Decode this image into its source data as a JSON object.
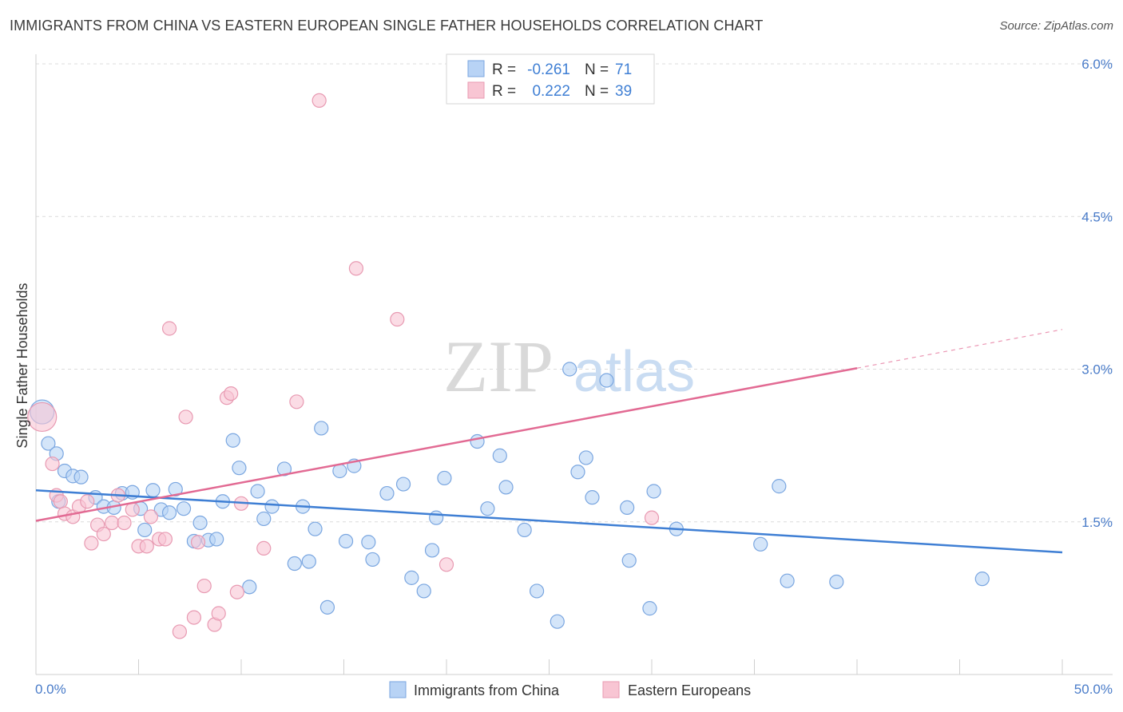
{
  "title": "IMMIGRANTS FROM CHINA VS EASTERN EUROPEAN SINGLE FATHER HOUSEHOLDS CORRELATION CHART",
  "source": "Source: ZipAtlas.com",
  "watermark": {
    "zip": "ZIP",
    "atlas": "atlas"
  },
  "legend": {
    "r_label": "R =",
    "n_label": "N =",
    "rows": [
      {
        "name": "Immigrants from China",
        "r": "-0.261",
        "n": "71",
        "fill": "#b8d3f5",
        "stroke": "#7aa6e0"
      },
      {
        "name": "Eastern Europeans",
        "r": "0.222",
        "n": "39",
        "fill": "#f8c5d3",
        "stroke": "#e89ab2"
      }
    ]
  },
  "chart_data": {
    "type": "scatter",
    "title": "IMMIGRANTS FROM CHINA VS EASTERN EUROPEAN SINGLE FATHER HOUSEHOLDS CORRELATION CHART",
    "xlabel": "",
    "ylabel": "Single Father Households",
    "xlim": [
      0,
      50
    ],
    "ylim": [
      0,
      6.2
    ],
    "x_tick_labels": {
      "min": "0.0%",
      "max": "50.0%"
    },
    "y_ticks": [
      {
        "value": 1.5,
        "label": "1.5%"
      },
      {
        "value": 3.0,
        "label": "3.0%"
      },
      {
        "value": 4.5,
        "label": "4.5%"
      },
      {
        "value": 6.0,
        "label": "6.0%"
      }
    ],
    "series": [
      {
        "name": "Immigrants from China",
        "color": "#3f7fd4",
        "fill": "#b8d3f5",
        "points": [
          [
            0.3,
            2.58
          ],
          [
            0.6,
            2.27
          ],
          [
            1.0,
            2.17
          ],
          [
            1.4,
            2.0
          ],
          [
            1.8,
            1.95
          ],
          [
            2.2,
            1.94
          ],
          [
            2.9,
            1.74
          ],
          [
            3.3,
            1.65
          ],
          [
            3.8,
            1.64
          ],
          [
            4.2,
            1.78
          ],
          [
            4.7,
            1.79
          ],
          [
            5.1,
            1.63
          ],
          [
            5.3,
            1.42
          ],
          [
            5.7,
            1.81
          ],
          [
            6.1,
            1.62
          ],
          [
            6.5,
            1.59
          ],
          [
            6.8,
            1.82
          ],
          [
            7.2,
            1.63
          ],
          [
            7.7,
            1.31
          ],
          [
            8.0,
            1.49
          ],
          [
            8.4,
            1.32
          ],
          [
            8.8,
            1.33
          ],
          [
            9.1,
            1.7
          ],
          [
            9.6,
            2.3
          ],
          [
            9.9,
            2.03
          ],
          [
            10.4,
            0.86
          ],
          [
            10.8,
            1.8
          ],
          [
            11.1,
            1.53
          ],
          [
            11.5,
            1.65
          ],
          [
            12.1,
            2.02
          ],
          [
            12.6,
            1.09
          ],
          [
            13.0,
            1.65
          ],
          [
            13.3,
            1.11
          ],
          [
            13.6,
            1.43
          ],
          [
            13.9,
            2.42
          ],
          [
            14.2,
            0.66
          ],
          [
            14.8,
            2.0
          ],
          [
            15.1,
            1.31
          ],
          [
            15.5,
            2.05
          ],
          [
            16.2,
            1.3
          ],
          [
            16.4,
            1.13
          ],
          [
            17.1,
            1.78
          ],
          [
            17.9,
            1.87
          ],
          [
            18.3,
            0.95
          ],
          [
            18.9,
            0.82
          ],
          [
            19.3,
            1.22
          ],
          [
            19.5,
            1.54
          ],
          [
            19.9,
            1.93
          ],
          [
            21.5,
            2.29
          ],
          [
            22.0,
            1.63
          ],
          [
            22.6,
            2.15
          ],
          [
            22.9,
            1.84
          ],
          [
            23.8,
            1.42
          ],
          [
            24.4,
            0.82
          ],
          [
            25.4,
            0.52
          ],
          [
            26.0,
            3.0
          ],
          [
            26.4,
            1.99
          ],
          [
            26.8,
            2.13
          ],
          [
            27.1,
            1.74
          ],
          [
            27.8,
            2.89
          ],
          [
            28.8,
            1.64
          ],
          [
            28.9,
            1.12
          ],
          [
            29.9,
            0.65
          ],
          [
            30.1,
            1.8
          ],
          [
            31.2,
            1.43
          ],
          [
            35.3,
            1.28
          ],
          [
            36.2,
            1.85
          ],
          [
            36.6,
            0.92
          ],
          [
            39.0,
            0.91
          ],
          [
            46.1,
            0.94
          ],
          [
            1.1,
            1.7
          ]
        ],
        "trend": {
          "x0": 0,
          "y0": 1.81,
          "x1": 50,
          "y1": 1.2
        }
      },
      {
        "name": "Eastern Europeans",
        "color": "#e26a93",
        "fill": "#f8c5d3",
        "points": [
          [
            0.3,
            2.53
          ],
          [
            0.8,
            2.07
          ],
          [
            1.0,
            1.76
          ],
          [
            1.2,
            1.7
          ],
          [
            1.4,
            1.58
          ],
          [
            1.8,
            1.55
          ],
          [
            2.1,
            1.65
          ],
          [
            2.5,
            1.7
          ],
          [
            2.7,
            1.29
          ],
          [
            3.0,
            1.47
          ],
          [
            3.3,
            1.38
          ],
          [
            3.7,
            1.49
          ],
          [
            4.0,
            1.76
          ],
          [
            4.3,
            1.49
          ],
          [
            4.7,
            1.62
          ],
          [
            5.0,
            1.26
          ],
          [
            5.4,
            1.26
          ],
          [
            5.6,
            1.55
          ],
          [
            6.0,
            1.33
          ],
          [
            6.3,
            1.33
          ],
          [
            6.5,
            3.4
          ],
          [
            7.0,
            0.42
          ],
          [
            7.3,
            2.53
          ],
          [
            7.7,
            0.56
          ],
          [
            7.9,
            1.3
          ],
          [
            8.2,
            0.87
          ],
          [
            8.7,
            0.49
          ],
          [
            8.9,
            0.6
          ],
          [
            9.3,
            2.72
          ],
          [
            9.5,
            2.76
          ],
          [
            9.8,
            0.81
          ],
          [
            10.0,
            1.68
          ],
          [
            11.1,
            1.24
          ],
          [
            12.7,
            2.68
          ],
          [
            13.8,
            5.64
          ],
          [
            15.6,
            3.99
          ],
          [
            17.6,
            3.49
          ],
          [
            20.0,
            1.08
          ],
          [
            30.0,
            1.54
          ]
        ],
        "trend": {
          "x0": 0,
          "y0": 1.51,
          "x1": 40,
          "y1": 3.01
        },
        "trend_extension": {
          "x0": 40,
          "y0": 3.01,
          "x1": 50,
          "y1": 3.39
        }
      }
    ]
  }
}
